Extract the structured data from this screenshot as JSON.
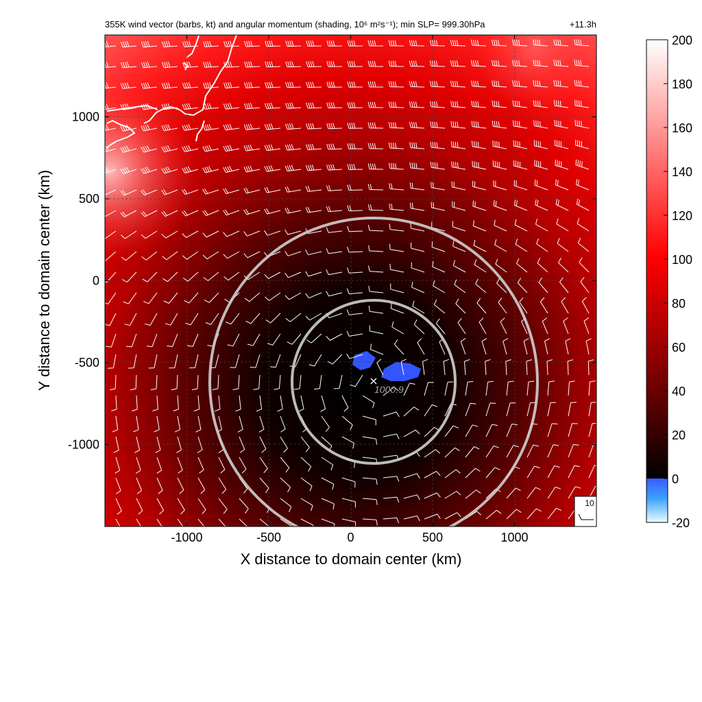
{
  "chart_data": {
    "type": "heatmap",
    "title": "355K wind vector (barbs, kt) and angular momentum (shading, 10⁶ m²s⁻¹); min SLP= 999.30hPa",
    "time_label": "+11.3h",
    "xlabel": "X distance to domain center (km)",
    "ylabel": "Y distance to domain center (km)",
    "xlim": [
      -1500,
      1500
    ],
    "ylim": [
      -1500,
      1500
    ],
    "x_ticks": [
      -1000,
      -500,
      0,
      500,
      1000
    ],
    "y_ticks": [
      1000,
      500,
      0,
      -500,
      -1000
    ],
    "x_tick_labels": [
      "-1000",
      "-500",
      "0",
      "500",
      "1000"
    ],
    "y_tick_labels": [
      "1000",
      "500",
      "0",
      "-500",
      "-1000"
    ],
    "grid": true,
    "colorbar": {
      "range": [
        -20,
        200
      ],
      "ticks": [
        200,
        180,
        160,
        140,
        120,
        100,
        80,
        60,
        40,
        20,
        0,
        -20
      ],
      "tick_labels": [
        "200",
        "180",
        "160",
        "140",
        "120",
        "100",
        "80",
        "60",
        "40",
        "20",
        "0",
        "-20"
      ]
    },
    "storm_center": {
      "x": 130,
      "y": -610,
      "label": "1000.9"
    },
    "range_rings_km": [
      500,
      1000
    ],
    "wind_barb_reference": "10",
    "colors": {
      "positive_high": "#ffffff",
      "mid": "#ff0000",
      "zero": "#000000",
      "negative_low": "#3366ff",
      "negative_min": "#ccffff",
      "coastline": "#ffffff",
      "barbs": "#ffffff",
      "rings": "#d0d0d0"
    }
  }
}
